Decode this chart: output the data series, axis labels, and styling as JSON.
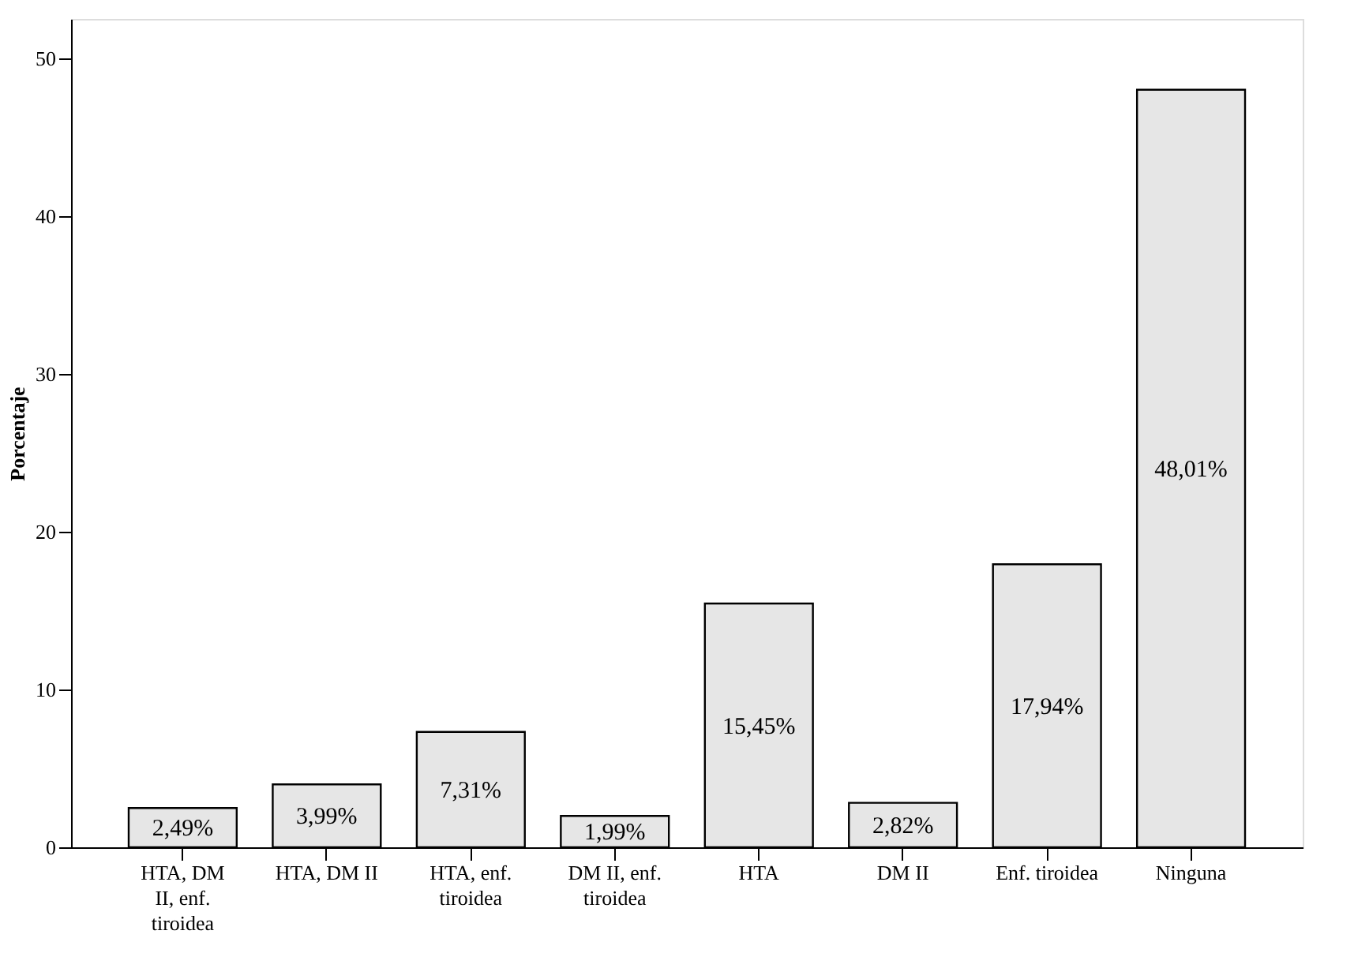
{
  "chart_data": {
    "type": "bar",
    "ylabel": "Porcentaje",
    "categories": [
      "HTA, DM II, enf. tiroidea",
      "HTA, DM II",
      "HTA, enf. tiroidea",
      "DM II, enf. tiroidea",
      "HTA",
      "DM II",
      "Enf. tiroidea",
      "Ninguna"
    ],
    "values": [
      2.49,
      3.99,
      7.31,
      1.99,
      15.45,
      2.82,
      17.94,
      48.01
    ],
    "value_labels": [
      "2,49%",
      "3,99%",
      "7,31%",
      "1,99%",
      "15,45%",
      "2,82%",
      "17,94%",
      "48,01%"
    ],
    "color": "#e6e6e6",
    "ylim": [
      0,
      52.5
    ],
    "yticks": [
      0,
      10,
      20,
      30,
      40,
      50
    ],
    "grid": false
  }
}
